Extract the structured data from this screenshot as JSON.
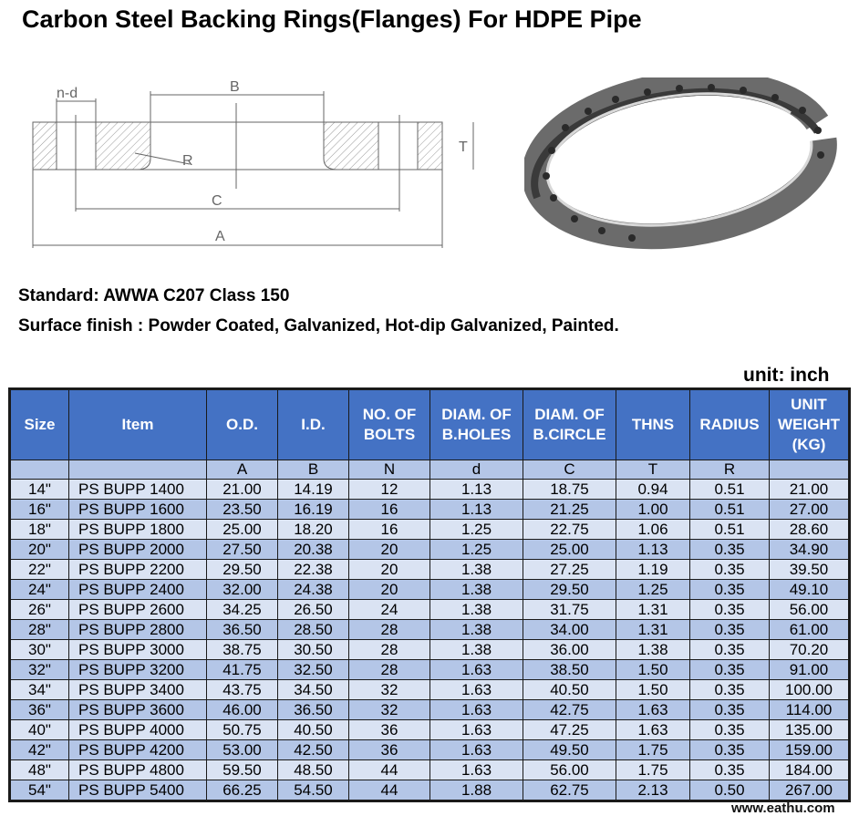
{
  "title": "Carbon Steel Backing Rings(Flanges) For HDPE Pipe",
  "drawing": {
    "labels": {
      "nd": "n-d",
      "B": "B",
      "R": "R",
      "C": "C",
      "A": "A",
      "T": "T"
    }
  },
  "standard": "Standard: AWWA C207  Class 150",
  "surface_finish": "Surface finish :  Powder Coated, Galvanized, Hot-dip Galvanized,  Painted.",
  "unit": "unit: inch",
  "watermark": "www.eathu.com",
  "colors": {
    "header": "#4472C4",
    "row_light": "#DAE3F3",
    "row_dark": "#B4C6E7"
  },
  "table": {
    "headers": [
      "Size",
      "Item",
      "O.D.",
      "I.D.",
      "NO. OF BOLTS",
      "DIAM. OF B.HOLES",
      "DIAM. OF B.CIRCLE",
      "THNS",
      "RADIUS",
      "UNIT WEIGHT (KG)"
    ],
    "symbols": [
      "",
      "",
      "A",
      "B",
      "N",
      "d",
      "C",
      "T",
      "R",
      ""
    ],
    "rows": [
      [
        "14\"",
        "PS BUPP 1400",
        "21.00",
        "14.19",
        "12",
        "1.13",
        "18.75",
        "0.94",
        "0.51",
        "21.00"
      ],
      [
        "16\"",
        "PS BUPP 1600",
        "23.50",
        "16.19",
        "16",
        "1.13",
        "21.25",
        "1.00",
        "0.51",
        "27.00"
      ],
      [
        "18\"",
        "PS BUPP 1800",
        "25.00",
        "18.20",
        "16",
        "1.25",
        "22.75",
        "1.06",
        "0.51",
        "28.60"
      ],
      [
        "20\"",
        "PS BUPP 2000",
        "27.50",
        "20.38",
        "20",
        "1.25",
        "25.00",
        "1.13",
        "0.35",
        "34.90"
      ],
      [
        "22\"",
        "PS BUPP 2200",
        "29.50",
        "22.38",
        "20",
        "1.38",
        "27.25",
        "1.19",
        "0.35",
        "39.50"
      ],
      [
        "24\"",
        "PS BUPP 2400",
        "32.00",
        "24.38",
        "20",
        "1.38",
        "29.50",
        "1.25",
        "0.35",
        "49.10"
      ],
      [
        "26\"",
        "PS BUPP 2600",
        "34.25",
        "26.50",
        "24",
        "1.38",
        "31.75",
        "1.31",
        "0.35",
        "56.00"
      ],
      [
        "28\"",
        "PS BUPP 2800",
        "36.50",
        "28.50",
        "28",
        "1.38",
        "34.00",
        "1.31",
        "0.35",
        "61.00"
      ],
      [
        "30\"",
        "PS BUPP 3000",
        "38.75",
        "30.50",
        "28",
        "1.38",
        "36.00",
        "1.38",
        "0.35",
        "70.20"
      ],
      [
        "32\"",
        "PS BUPP 3200",
        "41.75",
        "32.50",
        "28",
        "1.63",
        "38.50",
        "1.50",
        "0.35",
        "91.00"
      ],
      [
        "34\"",
        "PS BUPP 3400",
        "43.75",
        "34.50",
        "32",
        "1.63",
        "40.50",
        "1.50",
        "0.35",
        "100.00"
      ],
      [
        "36\"",
        "PS BUPP 3600",
        "46.00",
        "36.50",
        "32",
        "1.63",
        "42.75",
        "1.63",
        "0.35",
        "114.00"
      ],
      [
        "40\"",
        "PS BUPP 4000",
        "50.75",
        "40.50",
        "36",
        "1.63",
        "47.25",
        "1.63",
        "0.35",
        "135.00"
      ],
      [
        "42\"",
        "PS BUPP 4200",
        "53.00",
        "42.50",
        "36",
        "1.63",
        "49.50",
        "1.75",
        "0.35",
        "159.00"
      ],
      [
        "48\"",
        "PS BUPP 4800",
        "59.50",
        "48.50",
        "44",
        "1.63",
        "56.00",
        "1.75",
        "0.35",
        "184.00"
      ],
      [
        "54\"",
        "PS BUPP 5400",
        "66.25",
        "54.50",
        "44",
        "1.88",
        "62.75",
        "2.13",
        "0.50",
        "267.00"
      ]
    ]
  }
}
